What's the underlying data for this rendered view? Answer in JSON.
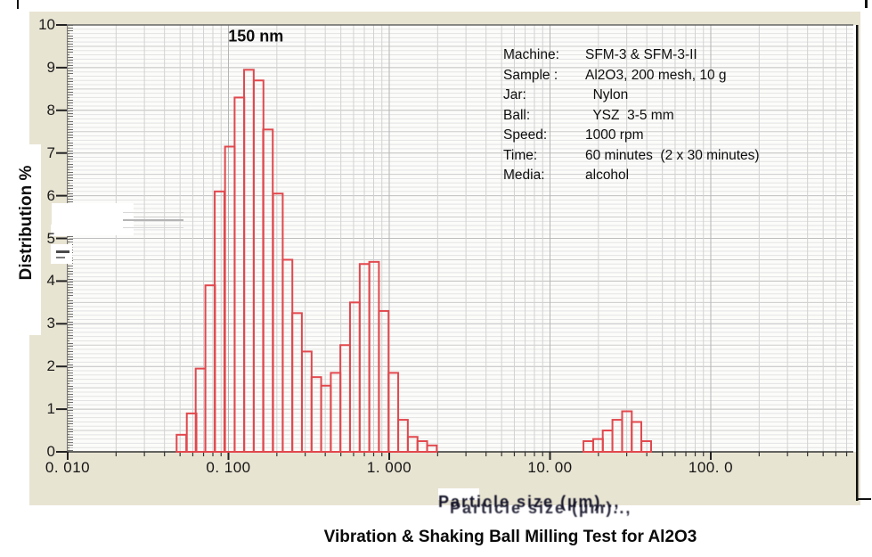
{
  "figure": {
    "y_axis_title": "Distribution %",
    "y_tick_labels": [
      "0",
      "1",
      "2",
      "3",
      "4",
      "5",
      "6",
      "7",
      "8",
      "9",
      "10"
    ],
    "x_tick_labels": [
      "0. 010",
      "0. 100",
      "1. 000",
      "10. 00",
      "100. 0"
    ],
    "peak_annotation": "150 nm",
    "x_axis_label_garbled": "Particle size (µm)..,",
    "caption": "Vibration & Shaking Ball Milling Test for Al2O3",
    "info_rows": [
      {
        "label": "Machine:",
        "value": "SFM-3 & SFM-3-II"
      },
      {
        "label": "Sample :",
        "value": "Al2O3, 200 mesh, 10 g"
      },
      {
        "label": "Jar:",
        "value": "  Nylon"
      },
      {
        "label": "Ball:",
        "value": "  YSZ  3-5 mm"
      },
      {
        "label": "Speed:",
        "value": "1000 rpm"
      },
      {
        "label": "Time:",
        "value": "60 minutes  (2 x 30 minutes)"
      },
      {
        "label": "Media:",
        "value": "alcohol"
      }
    ]
  },
  "colors": {
    "panel_bg": "#e8e4d2",
    "plot_bg": "#fcfcfa",
    "bar_outline": "#e1484d",
    "grid_minor": "#e3e3e3",
    "grid_mid": "#cccccc",
    "grid_major": "#bfbfbf",
    "vgrid_minor": "#d2d2d2",
    "vgrid_decade": "#b5b5b5",
    "axis": "#222222",
    "border_black": "#111111"
  },
  "chart_data": {
    "type": "bar",
    "title": "Vibration & Shaking Ball Milling Test for Al2O3",
    "xlabel": "Particle size (µm)",
    "ylabel": "Distribution %",
    "x_scale": "log",
    "xlim": [
      0.01,
      800
    ],
    "ylim": [
      0,
      10
    ],
    "grid": true,
    "x_decades": [
      0.01,
      0.1,
      1.0,
      10.0,
      100.0
    ],
    "bin_ratio": 1.148,
    "peaks_um": [
      0.15,
      0.7,
      30
    ],
    "bins": [
      {
        "x": 0.051,
        "y": 0.4
      },
      {
        "x": 0.059,
        "y": 0.9
      },
      {
        "x": 0.067,
        "y": 1.95
      },
      {
        "x": 0.077,
        "y": 3.9
      },
      {
        "x": 0.088,
        "y": 6.1
      },
      {
        "x": 0.102,
        "y": 7.15
      },
      {
        "x": 0.117,
        "y": 8.3
      },
      {
        "x": 0.134,
        "y": 8.95
      },
      {
        "x": 0.154,
        "y": 8.7
      },
      {
        "x": 0.176,
        "y": 7.55
      },
      {
        "x": 0.203,
        "y": 6.05
      },
      {
        "x": 0.233,
        "y": 4.5
      },
      {
        "x": 0.267,
        "y": 3.25
      },
      {
        "x": 0.307,
        "y": 2.35
      },
      {
        "x": 0.352,
        "y": 1.75
      },
      {
        "x": 0.404,
        "y": 1.55
      },
      {
        "x": 0.464,
        "y": 1.85
      },
      {
        "x": 0.532,
        "y": 2.5
      },
      {
        "x": 0.611,
        "y": 3.5
      },
      {
        "x": 0.702,
        "y": 4.4
      },
      {
        "x": 0.805,
        "y": 4.45
      },
      {
        "x": 0.924,
        "y": 3.3
      },
      {
        "x": 1.061,
        "y": 1.85
      },
      {
        "x": 1.218,
        "y": 0.75
      },
      {
        "x": 1.399,
        "y": 0.35
      },
      {
        "x": 1.606,
        "y": 0.25
      },
      {
        "x": 1.843,
        "y": 0.15
      },
      {
        "x": 17.3,
        "y": 0.25
      },
      {
        "x": 19.9,
        "y": 0.3
      },
      {
        "x": 22.8,
        "y": 0.5
      },
      {
        "x": 26.2,
        "y": 0.75
      },
      {
        "x": 30.1,
        "y": 0.95
      },
      {
        "x": 34.5,
        "y": 0.7
      },
      {
        "x": 39.7,
        "y": 0.25
      }
    ],
    "annotations": [
      {
        "text": "150 nm",
        "x": 0.148,
        "y": 9.72
      }
    ]
  }
}
